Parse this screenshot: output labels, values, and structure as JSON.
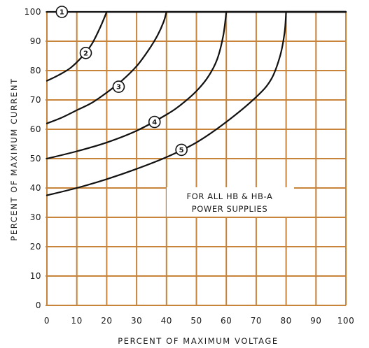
{
  "chart_data": {
    "type": "line",
    "xlabel": "PERCENT OF MAXIMUM VOLTAGE",
    "ylabel": "PERCENT OF MAXIMUM CURRENT",
    "xlim": [
      0,
      100
    ],
    "ylim": [
      0,
      100
    ],
    "x_ticks": [
      "0",
      "10",
      "20",
      "30",
      "40",
      "50",
      "60",
      "70",
      "80",
      "90",
      "100"
    ],
    "y_ticks": [
      "0",
      "10",
      "20",
      "30",
      "40",
      "50",
      "60",
      "70",
      "80",
      "90",
      "100"
    ],
    "grid": true,
    "annotation": [
      "FOR ALL HB & HB-A",
      "POWER SUPPLIES"
    ],
    "series": [
      {
        "label": "1",
        "label_at": [
          5,
          100
        ],
        "points": [
          [
            0,
            100
          ],
          [
            100,
            100
          ]
        ]
      },
      {
        "label": "2",
        "label_at": [
          13,
          86
        ],
        "points": [
          [
            0,
            76.5
          ],
          [
            4,
            78.5
          ],
          [
            8,
            81
          ],
          [
            12,
            85
          ],
          [
            15,
            89
          ],
          [
            17.5,
            94
          ],
          [
            19,
            97.5
          ],
          [
            20,
            100
          ],
          [
            100,
            100
          ]
        ]
      },
      {
        "label": "3",
        "label_at": [
          24,
          74.5
        ],
        "points": [
          [
            0,
            62
          ],
          [
            5,
            64
          ],
          [
            10,
            66.5
          ],
          [
            15,
            69
          ],
          [
            20,
            72.5
          ],
          [
            25,
            76.5
          ],
          [
            30,
            81.5
          ],
          [
            34,
            87
          ],
          [
            37,
            92
          ],
          [
            39,
            96.5
          ],
          [
            40,
            100
          ],
          [
            100,
            100
          ]
        ]
      },
      {
        "label": "4",
        "label_at": [
          36,
          62.5
        ],
        "points": [
          [
            0,
            50
          ],
          [
            10,
            52.5
          ],
          [
            20,
            55.5
          ],
          [
            30,
            59.5
          ],
          [
            40,
            65
          ],
          [
            45,
            68.5
          ],
          [
            50,
            73
          ],
          [
            54,
            78
          ],
          [
            57,
            84
          ],
          [
            59,
            92
          ],
          [
            60,
            100
          ],
          [
            100,
            100
          ]
        ]
      },
      {
        "label": "5",
        "label_at": [
          45,
          53
        ],
        "points": [
          [
            0,
            37.5
          ],
          [
            10,
            40
          ],
          [
            20,
            43
          ],
          [
            30,
            46.5
          ],
          [
            40,
            50.5
          ],
          [
            50,
            55.5
          ],
          [
            60,
            62.5
          ],
          [
            70,
            71
          ],
          [
            75,
            77
          ],
          [
            78,
            85
          ],
          [
            79.5,
            93
          ],
          [
            80,
            100
          ],
          [
            100,
            100
          ]
        ]
      }
    ]
  },
  "colors": {
    "grid": "#c8843a",
    "curve": "#111111",
    "text": "#1a1a1a",
    "background": "#ffffff"
  }
}
